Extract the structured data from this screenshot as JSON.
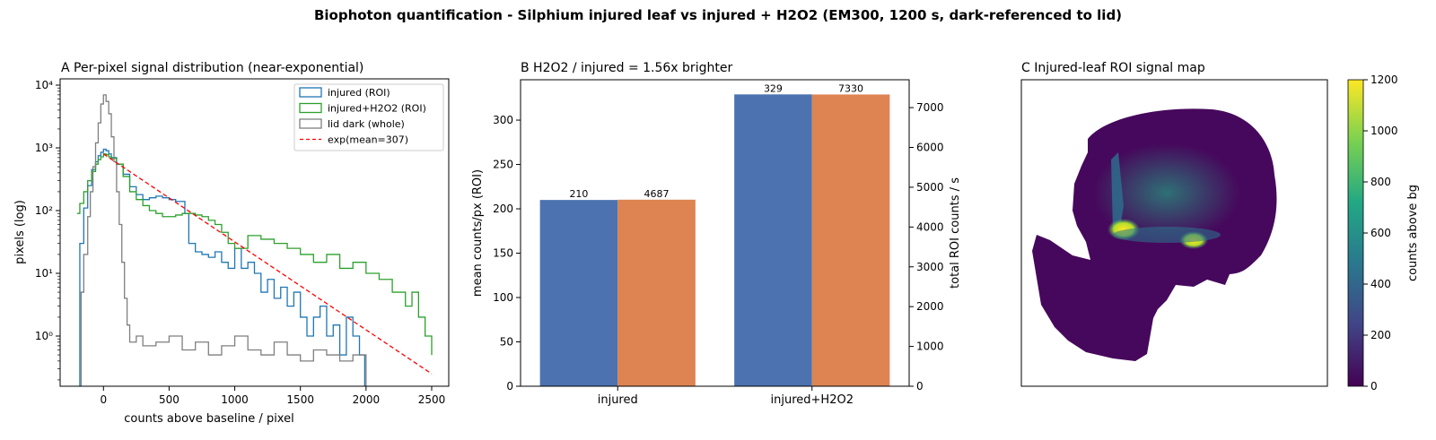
{
  "suptitle": "Biophoton quantification - Silphium injured leaf vs injured + H2O2  (EM300, 1200 s, dark-referenced to lid)",
  "chart_data": [
    {
      "type": "line",
      "title": "A  Per-pixel signal distribution (near-exponential)",
      "xlabel": "counts above baseline / pixel",
      "ylabel": "pixels (log)",
      "xlim": [
        -330,
        2630
      ],
      "ylim_log10": [
        -0.8,
        4.1
      ],
      "y_scale": "log",
      "x_ticks": [
        0,
        500,
        1000,
        1500,
        2000,
        2500
      ],
      "y_ticks": [
        {
          "value": 1,
          "label": "10⁰"
        },
        {
          "value": 10,
          "label": "10¹"
        },
        {
          "value": 100,
          "label": "10²"
        },
        {
          "value": 1000,
          "label": "10³"
        },
        {
          "value": 10000,
          "label": "10⁴"
        }
      ],
      "legend_position": "top-right",
      "series": [
        {
          "name": "injured (ROI)",
          "style": "step",
          "color": "#1f77b4",
          "x": [
            -200,
            -180,
            -150,
            -120,
            -90,
            -60,
            -40,
            -20,
            0,
            20,
            40,
            60,
            100,
            150,
            200,
            250,
            300,
            350,
            400,
            450,
            500,
            550,
            600,
            620,
            650,
            700,
            750,
            800,
            850,
            900,
            950,
            1000,
            1050,
            1100,
            1150,
            1200,
            1250,
            1300,
            1350,
            1400,
            1450,
            1500,
            1550,
            1600,
            1650,
            1700,
            1750,
            1800,
            1850,
            1900,
            1950,
            1990
          ],
          "y": [
            0.15,
            30,
            110,
            250,
            450,
            600,
            750,
            850,
            950,
            900,
            800,
            700,
            550,
            380,
            240,
            180,
            150,
            160,
            170,
            160,
            150,
            140,
            140,
            90,
            30,
            22,
            20,
            18,
            22,
            15,
            12,
            25,
            12,
            15,
            10,
            5,
            8,
            4,
            6,
            3,
            5,
            2,
            1,
            2,
            3,
            1,
            1.5,
            0.5,
            2,
            1,
            0.5,
            0.15
          ]
        },
        {
          "name": "injured+H2O2 (ROI)",
          "style": "step",
          "color": "#2ca02c",
          "x": [
            -200,
            -180,
            -150,
            -120,
            -90,
            -60,
            -40,
            -20,
            0,
            20,
            40,
            60,
            100,
            150,
            200,
            250,
            300,
            350,
            400,
            450,
            500,
            550,
            600,
            650,
            700,
            750,
            800,
            850,
            900,
            950,
            1000,
            1100,
            1200,
            1300,
            1400,
            1500,
            1600,
            1700,
            1800,
            1900,
            2000,
            2100,
            2200,
            2300,
            2350,
            2400,
            2450,
            2500
          ],
          "y": [
            90,
            130,
            200,
            300,
            420,
            550,
            650,
            720,
            800,
            780,
            720,
            680,
            550,
            350,
            200,
            150,
            120,
            100,
            90,
            80,
            80,
            85,
            90,
            90,
            85,
            80,
            70,
            60,
            45,
            30,
            25,
            40,
            35,
            30,
            25,
            20,
            15,
            20,
            12,
            15,
            10,
            8,
            5,
            3,
            5,
            2,
            1,
            0.5
          ]
        },
        {
          "name": "lid dark (whole)",
          "style": "step",
          "color": "#7f7f7f",
          "x": [
            -200,
            -170,
            -150,
            -120,
            -100,
            -80,
            -60,
            -40,
            -20,
            0,
            20,
            40,
            60,
            80,
            100,
            120,
            140,
            160,
            180,
            200,
            250,
            300,
            400,
            500,
            600,
            700,
            800,
            900,
            1000,
            1100,
            1200,
            1300,
            1400,
            1500,
            1600,
            1700,
            1800,
            1900,
            2000
          ],
          "y": [
            0.15,
            5,
            20,
            80,
            200,
            500,
            1200,
            2500,
            5000,
            7000,
            5500,
            3500,
            1500,
            600,
            200,
            60,
            15,
            4,
            1.5,
            0.8,
            1,
            0.7,
            0.8,
            1,
            0.6,
            0.8,
            0.5,
            0.7,
            1,
            0.6,
            0.5,
            0.8,
            0.5,
            0.4,
            0.6,
            0.5,
            0.4,
            0.5,
            0.15
          ]
        },
        {
          "name": "exp(mean=307)",
          "style": "dashed",
          "color": "#ff0000",
          "x": [
            0,
            2500
          ],
          "y": [
            800,
            0.25
          ]
        }
      ]
    },
    {
      "type": "bar",
      "title": "B  H2O2 / injured = 1.56x brighter",
      "categories": [
        "injured",
        "injured+H2O2"
      ],
      "series": [
        {
          "axis": "left",
          "color": "#4c72b0",
          "values": [
            210,
            329
          ]
        },
        {
          "axis": "right",
          "color": "#dd8452",
          "values": [
            4687,
            7330
          ]
        }
      ],
      "ylabel_left": "mean counts/px (ROI)",
      "ylabel_right": "total ROI counts / s",
      "ylim_left": [
        0,
        345.5
      ],
      "ylim_right": [
        0,
        7700
      ],
      "y_ticks_left": [
        0,
        50,
        100,
        150,
        200,
        250,
        300
      ],
      "y_ticks_right": [
        0,
        1000,
        2000,
        3000,
        4000,
        5000,
        6000,
        7000
      ]
    },
    {
      "type": "heatmap",
      "title": "C  Injured-leaf ROI signal map",
      "colorbar_label": "counts above bg",
      "colorbar_range": [
        0,
        1200
      ],
      "colorbar_ticks": [
        0,
        200,
        400,
        600,
        800,
        1000,
        1200
      ],
      "colormap": [
        "#440154",
        "#414487",
        "#2a788e",
        "#22a884",
        "#7ad151",
        "#fde725"
      ]
    }
  ]
}
